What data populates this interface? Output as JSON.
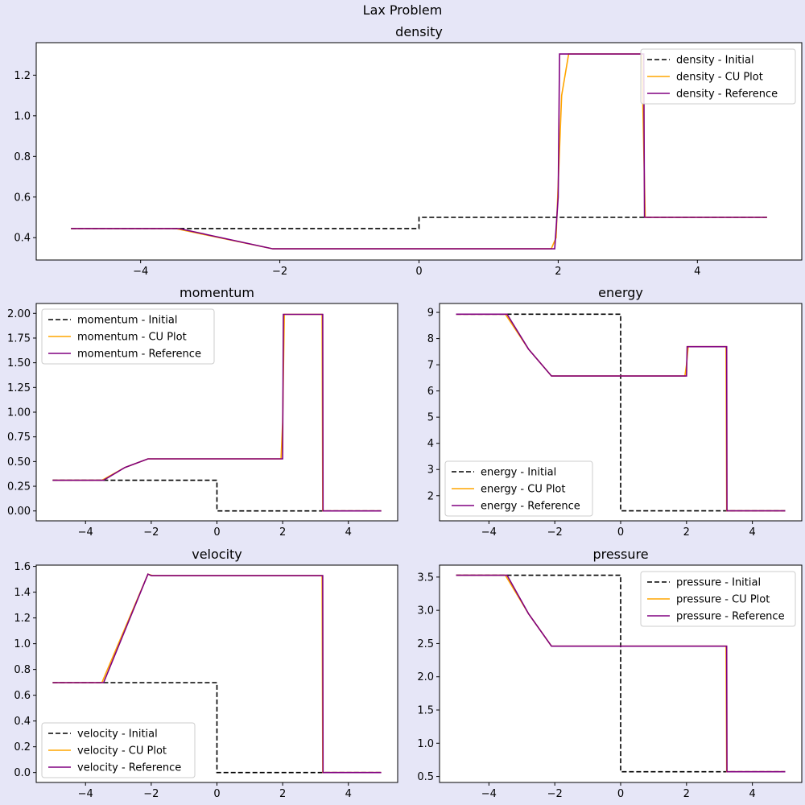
{
  "figure": {
    "title": "Lax Problem",
    "background": "#e6e6f7"
  },
  "colors": {
    "initial": "#000000",
    "cu": "#ffa500",
    "reference": "#800080"
  },
  "chart_data": [
    {
      "type": "line",
      "title": "density",
      "xlabel": "",
      "ylabel": "",
      "xlim": [
        -5.5,
        5.5
      ],
      "ylim": [
        0.29,
        1.36
      ],
      "xticks": [
        -4,
        -2,
        0,
        2,
        4
      ],
      "yticks": [
        0.4,
        0.6,
        0.8,
        1.0,
        1.2
      ],
      "ytick_labels": [
        "0.4",
        "0.6",
        "0.8",
        "1.0",
        "1.2"
      ],
      "grid": false,
      "legend_position": "upper right",
      "series": [
        {
          "name": "density - Initial",
          "style": "dashed",
          "color": "#000000",
          "x": [
            -5,
            0,
            0,
            5
          ],
          "y": [
            0.445,
            0.445,
            0.5,
            0.5
          ]
        },
        {
          "name": "density - CU Plot",
          "style": "solid",
          "color": "#ffa500",
          "x": [
            -5,
            -3.5,
            -2.1,
            1.9,
            1.97,
            2.05,
            2.15,
            3.2,
            3.25,
            5
          ],
          "y": [
            0.445,
            0.445,
            0.345,
            0.345,
            0.4,
            1.1,
            1.304,
            1.304,
            0.5,
            0.5
          ]
        },
        {
          "name": "density - Reference",
          "style": "solid",
          "color": "#800080",
          "x": [
            -5,
            -3.45,
            -2.1,
            1.95,
            2.0,
            2.02,
            3.23,
            3.24,
            5
          ],
          "y": [
            0.445,
            0.445,
            0.345,
            0.345,
            0.6,
            1.304,
            1.304,
            0.5,
            0.5
          ]
        }
      ]
    },
    {
      "type": "line",
      "title": "momentum",
      "xlabel": "",
      "ylabel": "",
      "xlim": [
        -5.5,
        5.5
      ],
      "ylim": [
        -0.1,
        2.1
      ],
      "xticks": [
        -4,
        -2,
        0,
        2,
        4
      ],
      "yticks": [
        0.0,
        0.25,
        0.5,
        0.75,
        1.0,
        1.25,
        1.5,
        1.75,
        2.0
      ],
      "ytick_labels": [
        "0.00",
        "0.25",
        "0.50",
        "0.75",
        "1.00",
        "1.25",
        "1.50",
        "1.75",
        "2.00"
      ],
      "grid": false,
      "legend_position": "upper left",
      "series": [
        {
          "name": "momentum - Initial",
          "style": "dashed",
          "color": "#000000",
          "x": [
            -5,
            0,
            0,
            5
          ],
          "y": [
            0.311,
            0.311,
            0.0,
            0.0
          ]
        },
        {
          "name": "momentum - CU Plot",
          "style": "solid",
          "color": "#ffa500",
          "x": [
            -5,
            -3.5,
            -2.8,
            -2.1,
            1.95,
            2.0,
            2.05,
            3.2,
            3.22,
            5
          ],
          "y": [
            0.311,
            0.311,
            0.44,
            0.527,
            0.527,
            0.9,
            1.99,
            1.99,
            0.0,
            0.0
          ]
        },
        {
          "name": "momentum - Reference",
          "style": "solid",
          "color": "#800080",
          "x": [
            -5,
            -3.45,
            -2.8,
            -2.1,
            2.0,
            2.02,
            3.22,
            3.23,
            5
          ],
          "y": [
            0.311,
            0.311,
            0.44,
            0.527,
            0.527,
            1.99,
            1.99,
            0.0,
            0.0
          ]
        }
      ]
    },
    {
      "type": "line",
      "title": "energy",
      "xlabel": "",
      "ylabel": "",
      "xlim": [
        -5.5,
        5.5
      ],
      "ylim": [
        1.04,
        9.34
      ],
      "xticks": [
        -4,
        -2,
        0,
        2,
        4
      ],
      "yticks": [
        2,
        3,
        4,
        5,
        6,
        7,
        8,
        9
      ],
      "ytick_labels": [
        "2",
        "3",
        "4",
        "5",
        "6",
        "7",
        "8",
        "9"
      ],
      "grid": false,
      "legend_position": "lower left",
      "series": [
        {
          "name": "energy - Initial",
          "style": "dashed",
          "color": "#000000",
          "x": [
            -5,
            0,
            0,
            5
          ],
          "y": [
            8.93,
            8.93,
            1.42,
            1.42
          ]
        },
        {
          "name": "energy - CU Plot",
          "style": "solid",
          "color": "#ffa500",
          "x": [
            -5,
            -3.5,
            -2.8,
            -2.1,
            1.95,
            2.0,
            2.05,
            3.2,
            3.22,
            5
          ],
          "y": [
            8.93,
            8.93,
            7.6,
            6.57,
            6.57,
            7.0,
            7.69,
            7.69,
            1.42,
            1.42
          ]
        },
        {
          "name": "energy - Reference",
          "style": "solid",
          "color": "#800080",
          "x": [
            -5,
            -3.45,
            -2.8,
            -2.1,
            2.0,
            2.02,
            3.22,
            3.23,
            5
          ],
          "y": [
            8.93,
            8.93,
            7.6,
            6.57,
            6.57,
            7.69,
            7.69,
            1.42,
            1.42
          ]
        }
      ]
    },
    {
      "type": "line",
      "title": "velocity",
      "xlabel": "",
      "ylabel": "",
      "xlim": [
        -5.5,
        5.5
      ],
      "ylim": [
        -0.077,
        1.61
      ],
      "xticks": [
        -4,
        -2,
        0,
        2,
        4
      ],
      "yticks": [
        0.0,
        0.2,
        0.4,
        0.6,
        0.8,
        1.0,
        1.2,
        1.4,
        1.6
      ],
      "ytick_labels": [
        "0.0",
        "0.2",
        "0.4",
        "0.6",
        "0.8",
        "1.0",
        "1.2",
        "1.4",
        "1.6"
      ],
      "grid": false,
      "legend_position": "lower left",
      "series": [
        {
          "name": "velocity - Initial",
          "style": "dashed",
          "color": "#000000",
          "x": [
            -5,
            0,
            0,
            5
          ],
          "y": [
            0.698,
            0.698,
            0.0,
            0.0
          ]
        },
        {
          "name": "velocity - CU Plot",
          "style": "solid",
          "color": "#ffa500",
          "x": [
            -5,
            -3.5,
            -2.1,
            -1.95,
            3.2,
            3.22,
            5
          ],
          "y": [
            0.698,
            0.698,
            1.54,
            1.528,
            1.528,
            0.0,
            0.0
          ]
        },
        {
          "name": "velocity - Reference",
          "style": "solid",
          "color": "#800080",
          "x": [
            -5,
            -3.45,
            -2.1,
            -2.0,
            3.22,
            3.23,
            5
          ],
          "y": [
            0.698,
            0.698,
            1.54,
            1.528,
            1.528,
            0.0,
            0.0
          ]
        }
      ]
    },
    {
      "type": "line",
      "title": "pressure",
      "xlabel": "",
      "ylabel": "",
      "xlim": [
        -5.5,
        5.5
      ],
      "ylim": [
        0.41,
        3.68
      ],
      "xticks": [
        -4,
        -2,
        0,
        2,
        4
      ],
      "yticks": [
        0.5,
        1.0,
        1.5,
        2.0,
        2.5,
        3.0,
        3.5
      ],
      "ytick_labels": [
        "0.5",
        "1.0",
        "1.5",
        "2.0",
        "2.5",
        "3.0",
        "3.5"
      ],
      "grid": false,
      "legend_position": "upper right",
      "series": [
        {
          "name": "pressure - Initial",
          "style": "dashed",
          "color": "#000000",
          "x": [
            -5,
            0,
            0,
            5
          ],
          "y": [
            3.528,
            3.528,
            0.571,
            0.571
          ]
        },
        {
          "name": "pressure - CU Plot",
          "style": "solid",
          "color": "#ffa500",
          "x": [
            -5,
            -3.5,
            -2.8,
            -2.1,
            3.2,
            3.22,
            5
          ],
          "y": [
            3.528,
            3.528,
            2.95,
            2.46,
            2.46,
            0.571,
            0.571
          ]
        },
        {
          "name": "pressure - Reference",
          "style": "solid",
          "color": "#800080",
          "x": [
            -5,
            -3.45,
            -2.8,
            -2.1,
            3.22,
            3.23,
            5
          ],
          "y": [
            3.528,
            3.528,
            2.95,
            2.46,
            2.46,
            0.571,
            0.571
          ]
        }
      ]
    }
  ]
}
